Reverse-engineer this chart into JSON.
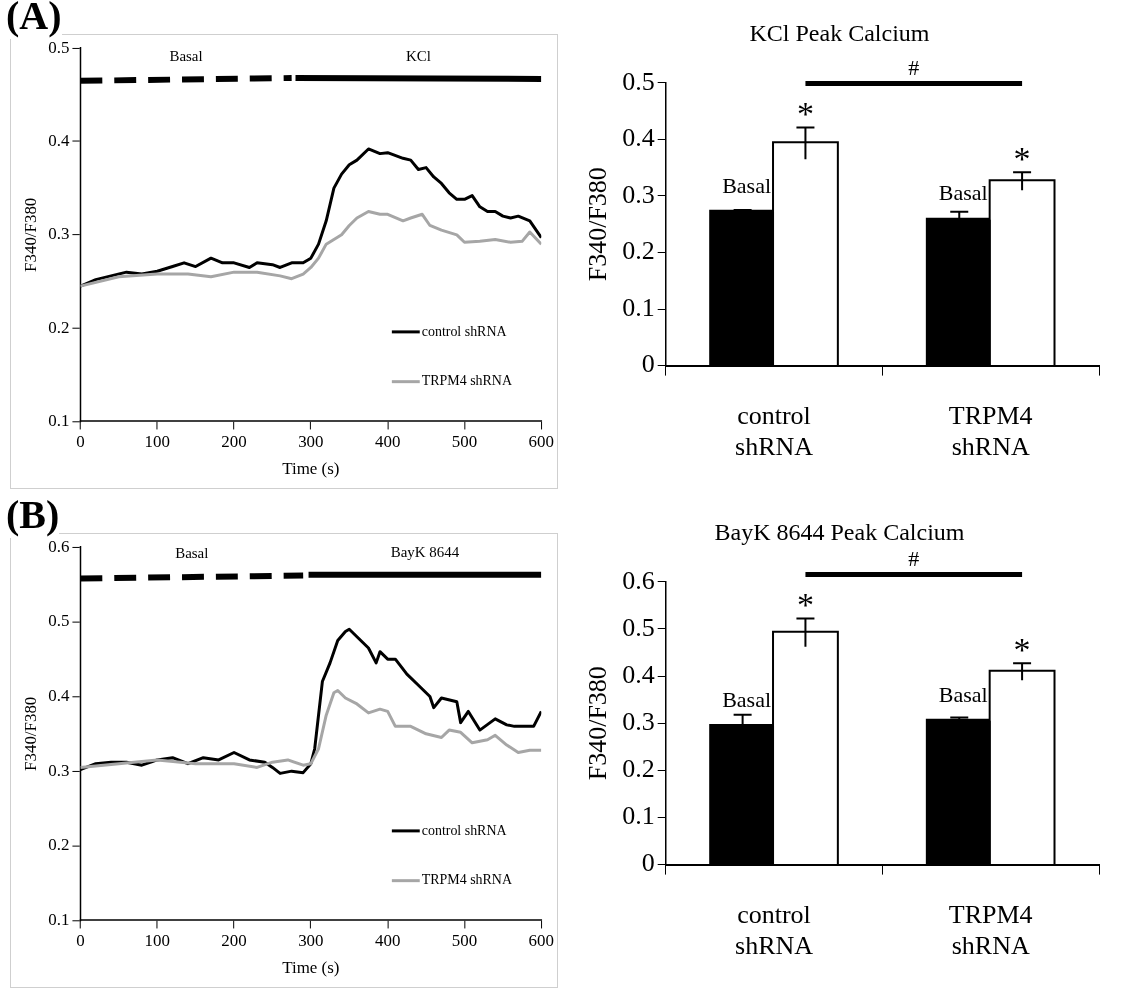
{
  "chart_data": [
    {
      "type": "line",
      "xlabel": "Time (s)",
      "ylabel": "F340/F380",
      "annotations": [
        "(A)"
      ],
      "xlim": [
        0,
        600
      ],
      "xticks": [
        0,
        100,
        200,
        300,
        400,
        500,
        600
      ],
      "ylim": [
        0.1,
        0.5
      ],
      "yticks": [
        0.1,
        0.2,
        0.3,
        0.4,
        0.5
      ],
      "legend": "bottom right",
      "marker": "none",
      "series": [
        {
          "name": "Basal",
          "color": "#000000",
          "line_style": "dashed",
          "x": [
            0,
            275
          ],
          "values": [
            0.465,
            0.468
          ]
        },
        {
          "name": "KCl",
          "color": "#000000",
          "line_style": "solid",
          "x": [
            280,
            600
          ],
          "values": [
            0.468,
            0.467
          ]
        },
        {
          "name": "control shRNA",
          "color": "#000000",
          "x": [
            0,
            20,
            40,
            60,
            80,
            100,
            120,
            135,
            150,
            170,
            185,
            200,
            220,
            230,
            250,
            260,
            275,
            290,
            300,
            310,
            320,
            330,
            340,
            350,
            360,
            375,
            390,
            400,
            420,
            430,
            440,
            450,
            460,
            470,
            480,
            490,
            500,
            510,
            520,
            530,
            540,
            550,
            560,
            570,
            585,
            600
          ],
          "values": [
            0.245,
            0.252,
            0.256,
            0.26,
            0.258,
            0.261,
            0.266,
            0.27,
            0.266,
            0.275,
            0.27,
            0.27,
            0.265,
            0.27,
            0.268,
            0.265,
            0.27,
            0.27,
            0.275,
            0.29,
            0.315,
            0.35,
            0.365,
            0.375,
            0.38,
            0.392,
            0.387,
            0.388,
            0.382,
            0.38,
            0.37,
            0.372,
            0.362,
            0.355,
            0.345,
            0.338,
            0.338,
            0.342,
            0.33,
            0.325,
            0.325,
            0.32,
            0.318,
            0.32,
            0.315,
            0.297
          ]
        },
        {
          "name": "TRPM4 shRNA",
          "color": "#a6a6a6",
          "x": [
            0,
            50,
            100,
            140,
            170,
            200,
            230,
            260,
            275,
            290,
            300,
            310,
            320,
            330,
            340,
            350,
            360,
            375,
            390,
            400,
            420,
            430,
            445,
            455,
            470,
            490,
            500,
            520,
            540,
            560,
            575,
            585,
            600
          ],
          "values": [
            0.245,
            0.255,
            0.258,
            0.258,
            0.255,
            0.26,
            0.26,
            0.256,
            0.253,
            0.258,
            0.265,
            0.275,
            0.29,
            0.295,
            0.3,
            0.31,
            0.318,
            0.325,
            0.322,
            0.322,
            0.315,
            0.318,
            0.322,
            0.31,
            0.305,
            0.3,
            0.292,
            0.293,
            0.295,
            0.292,
            0.293,
            0.303,
            0.29
          ]
        }
      ]
    },
    {
      "type": "bar",
      "title": "KCl Peak Calcium",
      "ylabel": "F340/F380",
      "categories": [
        "control shRNA",
        "TRPM4 shRNA"
      ],
      "ylim": [
        0,
        0.5
      ],
      "yticks": [
        0,
        0.1,
        0.2,
        0.3,
        0.4,
        0.5
      ],
      "annotations": [
        "*",
        "*",
        "#"
      ],
      "series": [
        {
          "name": "Basal",
          "color": "#000000",
          "values": [
            0.272,
            0.258
          ],
          "errors": [
            0.003,
            0.014
          ]
        },
        {
          "color": "#ffffff",
          "values": [
            0.393,
            0.326
          ],
          "errors": [
            0.028,
            0.016
          ]
        }
      ]
    },
    {
      "type": "line",
      "xlabel": "Time (s)",
      "ylabel": "F340/F380",
      "annotations": [
        "(B)"
      ],
      "xlim": [
        0,
        600
      ],
      "xticks": [
        0,
        100,
        200,
        300,
        400,
        500,
        600
      ],
      "ylim": [
        0.1,
        0.6
      ],
      "yticks": [
        0.1,
        0.2,
        0.3,
        0.4,
        0.5,
        0.6
      ],
      "legend": "bottom right",
      "marker": "none",
      "series": [
        {
          "name": "Basal",
          "color": "#000000",
          "line_style": "dashed",
          "x": [
            0,
            290
          ],
          "values": [
            0.558,
            0.562
          ]
        },
        {
          "name": "BayK 8644",
          "color": "#000000",
          "line_style": "solid",
          "x": [
            297,
            600
          ],
          "values": [
            0.563,
            0.563
          ]
        },
        {
          "name": "control shRNA",
          "color": "#000000",
          "x": [
            0,
            20,
            40,
            60,
            80,
            100,
            120,
            140,
            160,
            180,
            200,
            220,
            240,
            250,
            260,
            275,
            290,
            300,
            305,
            315,
            325,
            335,
            345,
            350,
            360,
            375,
            385,
            390,
            400,
            410,
            425,
            440,
            455,
            460,
            470,
            490,
            495,
            505,
            520,
            540,
            555,
            565,
            580,
            590,
            600
          ],
          "values": [
            0.302,
            0.31,
            0.312,
            0.312,
            0.308,
            0.315,
            0.318,
            0.31,
            0.318,
            0.315,
            0.325,
            0.315,
            0.312,
            0.305,
            0.297,
            0.3,
            0.298,
            0.31,
            0.33,
            0.42,
            0.445,
            0.475,
            0.487,
            0.49,
            0.48,
            0.465,
            0.445,
            0.46,
            0.45,
            0.45,
            0.43,
            0.415,
            0.4,
            0.385,
            0.398,
            0.393,
            0.365,
            0.38,
            0.355,
            0.37,
            0.362,
            0.36,
            0.36,
            0.36,
            0.38
          ]
        },
        {
          "name": "TRPM4 shRNA",
          "color": "#a6a6a6",
          "x": [
            0,
            50,
            100,
            150,
            200,
            230,
            250,
            270,
            290,
            300,
            310,
            320,
            330,
            335,
            345,
            360,
            375,
            390,
            400,
            410,
            430,
            450,
            470,
            480,
            495,
            510,
            530,
            540,
            555,
            570,
            585,
            600
          ],
          "values": [
            0.305,
            0.31,
            0.315,
            0.31,
            0.31,
            0.305,
            0.312,
            0.315,
            0.308,
            0.31,
            0.33,
            0.375,
            0.405,
            0.408,
            0.398,
            0.39,
            0.378,
            0.383,
            0.38,
            0.36,
            0.36,
            0.35,
            0.345,
            0.355,
            0.352,
            0.338,
            0.342,
            0.348,
            0.335,
            0.325,
            0.328,
            0.328
          ]
        }
      ]
    },
    {
      "type": "bar",
      "title": "BayK 8644 Peak Calcium",
      "ylabel": "F340/F380",
      "categories": [
        "control shRNA",
        "TRPM4 shRNA"
      ],
      "ylim": [
        0,
        0.6
      ],
      "yticks": [
        0,
        0.1,
        0.2,
        0.3,
        0.4,
        0.5,
        0.6
      ],
      "annotations": [
        "*",
        "*",
        "#"
      ],
      "series": [
        {
          "name": "Basal",
          "color": "#000000",
          "values": [
            0.294,
            0.305
          ],
          "errors": [
            0.024,
            0.007
          ]
        },
        {
          "color": "#ffffff",
          "values": [
            0.492,
            0.409
          ],
          "errors": [
            0.03,
            0.018
          ]
        }
      ]
    }
  ]
}
